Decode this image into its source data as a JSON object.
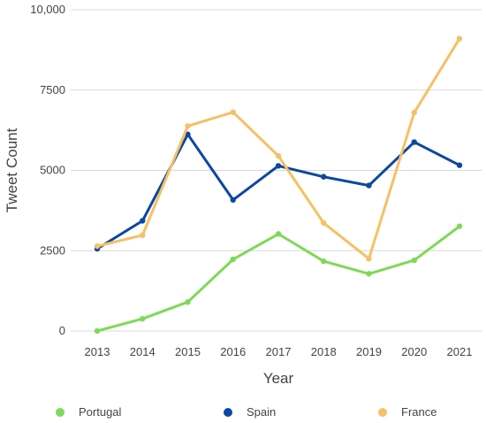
{
  "chart_data": {
    "type": "line",
    "title": "",
    "xlabel": "Year",
    "ylabel": "Tweet Count",
    "categories": [
      "2013",
      "2014",
      "2015",
      "2016",
      "2017",
      "2018",
      "2019",
      "2020",
      "2021"
    ],
    "ylim": [
      0,
      10000
    ],
    "y_ticks": [
      0,
      2500,
      5000,
      7500,
      10000
    ],
    "y_tick_labels": [
      "0",
      "2500",
      "5000",
      "7500",
      "10,000"
    ],
    "grid": "horizontal",
    "legend_position": "bottom",
    "series": [
      {
        "name": "Portugal",
        "color": "#7ed957",
        "values": [
          0,
          380,
          900,
          2230,
          3020,
          2170,
          1780,
          2200,
          3260
        ]
      },
      {
        "name": "Spain",
        "color": "#0d47a1",
        "values": [
          2560,
          3430,
          6120,
          4080,
          5140,
          4800,
          4530,
          5880,
          5160
        ]
      },
      {
        "name": "France",
        "color": "#f6c065",
        "values": [
          2640,
          2980,
          6380,
          6810,
          5450,
          3360,
          2250,
          6800,
          9100
        ]
      }
    ]
  }
}
